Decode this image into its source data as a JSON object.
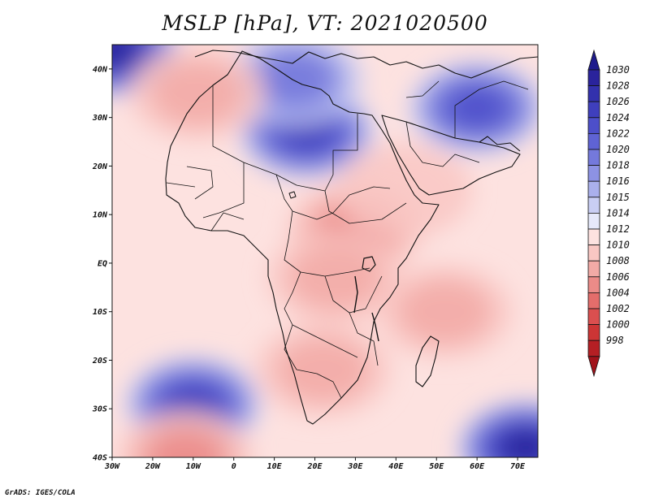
{
  "title": "MSLP [hPa], VT: 2021020500",
  "credit": "GrADS: IGES/COLA",
  "map": {
    "lon_range": [
      -30,
      75
    ],
    "lat_range": [
      -40,
      45
    ],
    "lon_ticks": [
      {
        "lon": -30,
        "label": "30W"
      },
      {
        "lon": -20,
        "label": "20W"
      },
      {
        "lon": -10,
        "label": "10W"
      },
      {
        "lon": 0,
        "label": "0"
      },
      {
        "lon": 10,
        "label": "10E"
      },
      {
        "lon": 20,
        "label": "20E"
      },
      {
        "lon": 30,
        "label": "30E"
      },
      {
        "lon": 40,
        "label": "40E"
      },
      {
        "lon": 50,
        "label": "50E"
      },
      {
        "lon": 60,
        "label": "60E"
      },
      {
        "lon": 70,
        "label": "70E"
      }
    ],
    "lat_ticks": [
      {
        "lat": 40,
        "label": "40N"
      },
      {
        "lat": 30,
        "label": "30N"
      },
      {
        "lat": 20,
        "label": "20N"
      },
      {
        "lat": 10,
        "label": "10N"
      },
      {
        "lat": 0,
        "label": "EQ"
      },
      {
        "lat": -10,
        "label": "10S"
      },
      {
        "lat": -20,
        "label": "20S"
      },
      {
        "lat": -30,
        "label": "30S"
      },
      {
        "lat": -40,
        "label": "40S"
      }
    ]
  },
  "colorbar": {
    "levels": [
      {
        "label": "1030",
        "color": "#2a239c"
      },
      {
        "label": "1028",
        "color": "#3331ad"
      },
      {
        "label": "1026",
        "color": "#3f3fbd"
      },
      {
        "label": "1024",
        "color": "#4d4fca"
      },
      {
        "label": "1022",
        "color": "#5f63d4"
      },
      {
        "label": "1020",
        "color": "#7479dc"
      },
      {
        "label": "1018",
        "color": "#8d92e4"
      },
      {
        "label": "1016",
        "color": "#aab0ec"
      },
      {
        "label": "1015",
        "color": "#c9cef4"
      },
      {
        "label": "1014",
        "color": "#e6e9fb"
      },
      {
        "label": "1012",
        "color": "#fde2e0"
      },
      {
        "label": "1010",
        "color": "#f9c7c3"
      },
      {
        "label": "1008",
        "color": "#f2aaa6"
      },
      {
        "label": "1006",
        "color": "#eb8b88"
      },
      {
        "label": "1004",
        "color": "#e46d6b"
      },
      {
        "label": "1002",
        "color": "#da4f4f"
      },
      {
        "label": "1000",
        "color": "#cc3535"
      },
      {
        "label": "998",
        "color": "#b51f24"
      }
    ],
    "top_arrow_color": "#1f1b8c",
    "bottom_arrow_color": "#a1131b"
  },
  "pressure_features": [
    {
      "name": "saharan-high",
      "lon": 18,
      "lat": 27,
      "hpa": 1026
    },
    {
      "name": "arabian-high",
      "lon": 60,
      "lat": 32,
      "hpa": 1024
    },
    {
      "name": "south-atlantic-high",
      "lon": -10,
      "lat": -29,
      "hpa": 1026
    },
    {
      "name": "south-indian-high",
      "lon": 72,
      "lat": -38,
      "hpa": 1030
    },
    {
      "name": "nw-atlantic-high",
      "lon": -30,
      "lat": 44,
      "hpa": 1030
    },
    {
      "name": "mediterranean-high",
      "lon": 15,
      "lat": 38,
      "hpa": 1020
    },
    {
      "name": "north-atlantic-low",
      "lon": -9,
      "lat": 35,
      "hpa": 1008
    },
    {
      "name": "south-atlantic-low",
      "lon": -12,
      "lat": -40,
      "hpa": 1006
    },
    {
      "name": "sudan-low",
      "lon": 30,
      "lat": 7,
      "hpa": 1006
    },
    {
      "name": "congo-low",
      "lon": 25,
      "lat": -3,
      "hpa": 1008
    },
    {
      "name": "kalahari-low",
      "lon": 22,
      "lat": -22,
      "hpa": 1008
    },
    {
      "name": "indian-ocean-low",
      "lon": 52,
      "lat": -10,
      "hpa": 1008
    },
    {
      "name": "arabia-low",
      "lon": 42,
      "lat": 15,
      "hpa": 1010
    }
  ]
}
